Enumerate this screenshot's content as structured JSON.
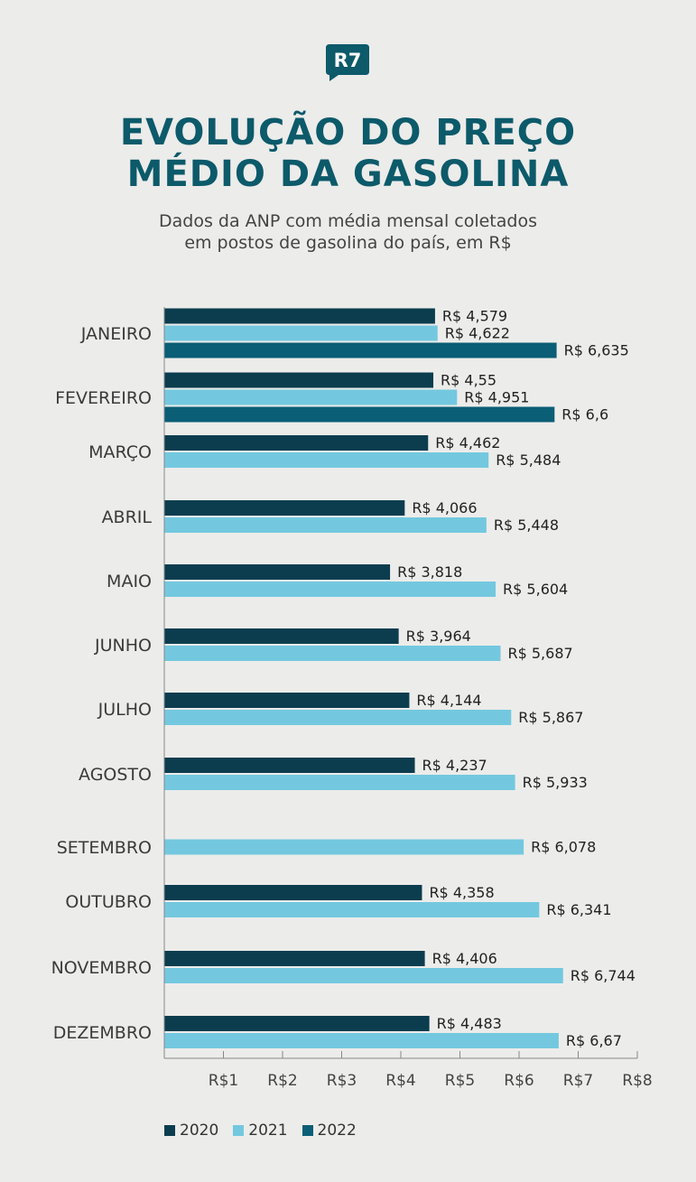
{
  "brand": {
    "logo_text": "R7"
  },
  "header": {
    "title_line1": "EVOLUÇÃO DO PREÇO",
    "title_line2": "MÉDIO DA GASOLINA",
    "subtitle_line1": "Dados da ANP com média mensal coletados",
    "subtitle_line2": "em postos de gasolina do país, em R$"
  },
  "colors": {
    "s2020": "#0b3d4f",
    "s2021": "#73c8df",
    "s2022": "#0a5e76",
    "title": "#0c5a6a"
  },
  "chart_data": {
    "type": "bar",
    "orientation": "horizontal",
    "title": "EVOLUÇÃO DO PREÇO MÉDIO DA GASOLINA",
    "subtitle": "Dados da ANP com média mensal coletados em postos de gasolina do país, em R$",
    "categories": [
      "JANEIRO",
      "FEVEREIRO",
      "MARÇO",
      "ABRIL",
      "MAIO",
      "JUNHO",
      "JULHO",
      "AGOSTO",
      "SETEMBRO",
      "OUTUBRO",
      "NOVEMBRO",
      "DEZEMBRO"
    ],
    "series": [
      {
        "name": "2020",
        "values": [
          4.579,
          4.55,
          4.462,
          4.066,
          3.818,
          3.964,
          4.144,
          4.237,
          null,
          4.358,
          4.406,
          4.483
        ],
        "labels": [
          "R$ 4,579",
          "R$ 4,55",
          "R$ 4,462",
          "R$ 4,066",
          "R$ 3,818",
          "R$ 3,964",
          "R$ 4,144",
          "R$ 4,237",
          null,
          "R$ 4,358",
          "R$ 4,406",
          "R$ 4,483"
        ]
      },
      {
        "name": "2021",
        "values": [
          4.622,
          4.951,
          5.484,
          5.448,
          5.604,
          5.687,
          5.867,
          5.933,
          6.078,
          6.341,
          6.744,
          6.67
        ],
        "labels": [
          "R$ 4,622",
          "R$ 4,951",
          "R$ 5,484",
          "R$ 5,448",
          "R$ 5,604",
          "R$ 5,687",
          "R$ 5,867",
          "R$ 5,933",
          "R$ 6,078",
          "R$ 6,341",
          "R$ 6,744",
          "R$ 6,67"
        ]
      },
      {
        "name": "2022",
        "values": [
          6.635,
          6.6,
          null,
          null,
          null,
          null,
          null,
          null,
          null,
          null,
          null,
          null
        ],
        "labels": [
          "R$ 6,635",
          "R$ 6,6",
          null,
          null,
          null,
          null,
          null,
          null,
          null,
          null,
          null,
          null
        ]
      }
    ],
    "x_ticks": [
      1,
      2,
      3,
      4,
      5,
      6,
      7,
      8
    ],
    "x_tick_labels": [
      "R$1",
      "R$2",
      "R$3",
      "R$4",
      "R$5",
      "R$6",
      "R$7",
      "R$8"
    ],
    "xlim": [
      0,
      8
    ],
    "grid": false,
    "legend_position": "bottom-left"
  }
}
